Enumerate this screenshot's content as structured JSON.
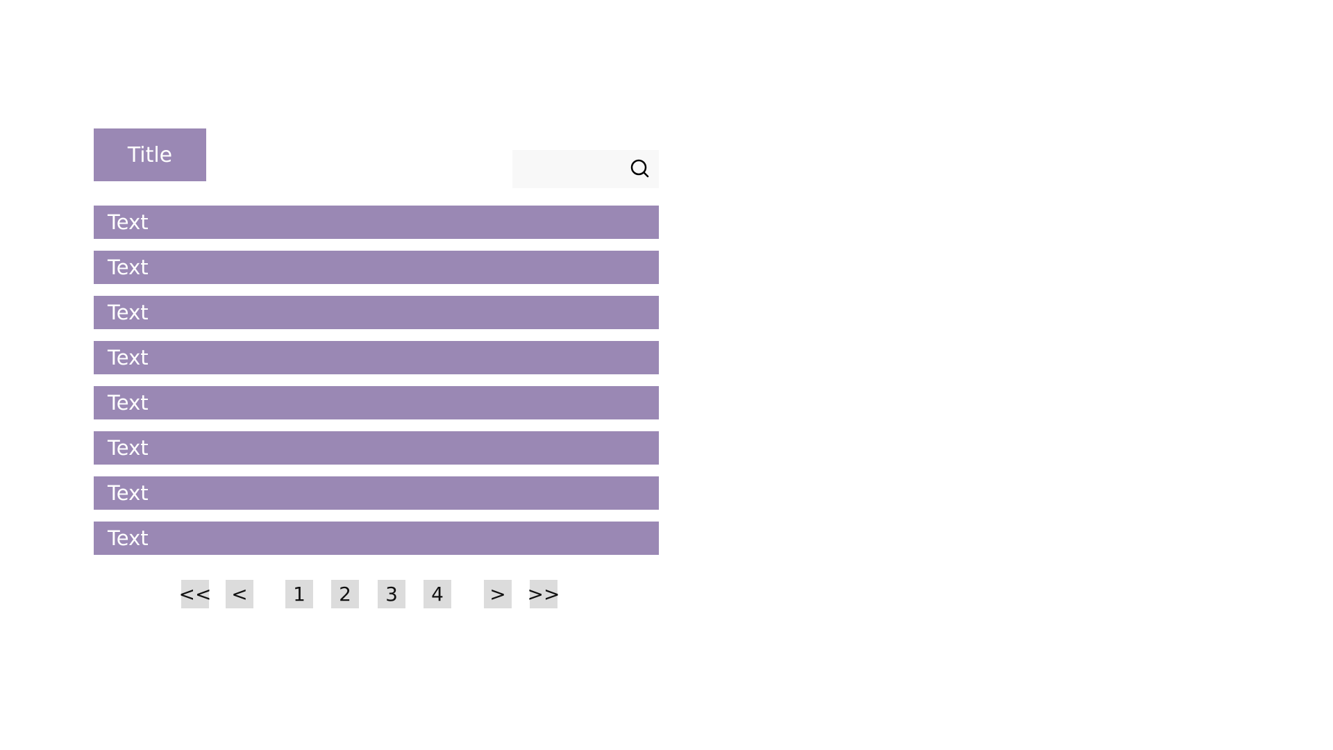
{
  "header": {
    "title": "Title"
  },
  "search": {
    "value": "",
    "placeholder": "",
    "icon": "search-icon"
  },
  "list": {
    "items": [
      {
        "label": "Text"
      },
      {
        "label": "Text"
      },
      {
        "label": "Text"
      },
      {
        "label": "Text"
      },
      {
        "label": "Text"
      },
      {
        "label": "Text"
      },
      {
        "label": "Text"
      },
      {
        "label": "Text"
      }
    ]
  },
  "pagination": {
    "first": "<<",
    "prev": "<",
    "pages": [
      "1",
      "2",
      "3",
      "4"
    ],
    "next": ">",
    "last": ">>"
  },
  "colors": {
    "accent": "#9a88b4",
    "pager_button": "#dcdcdc",
    "search_background": "#f8f8f8"
  }
}
